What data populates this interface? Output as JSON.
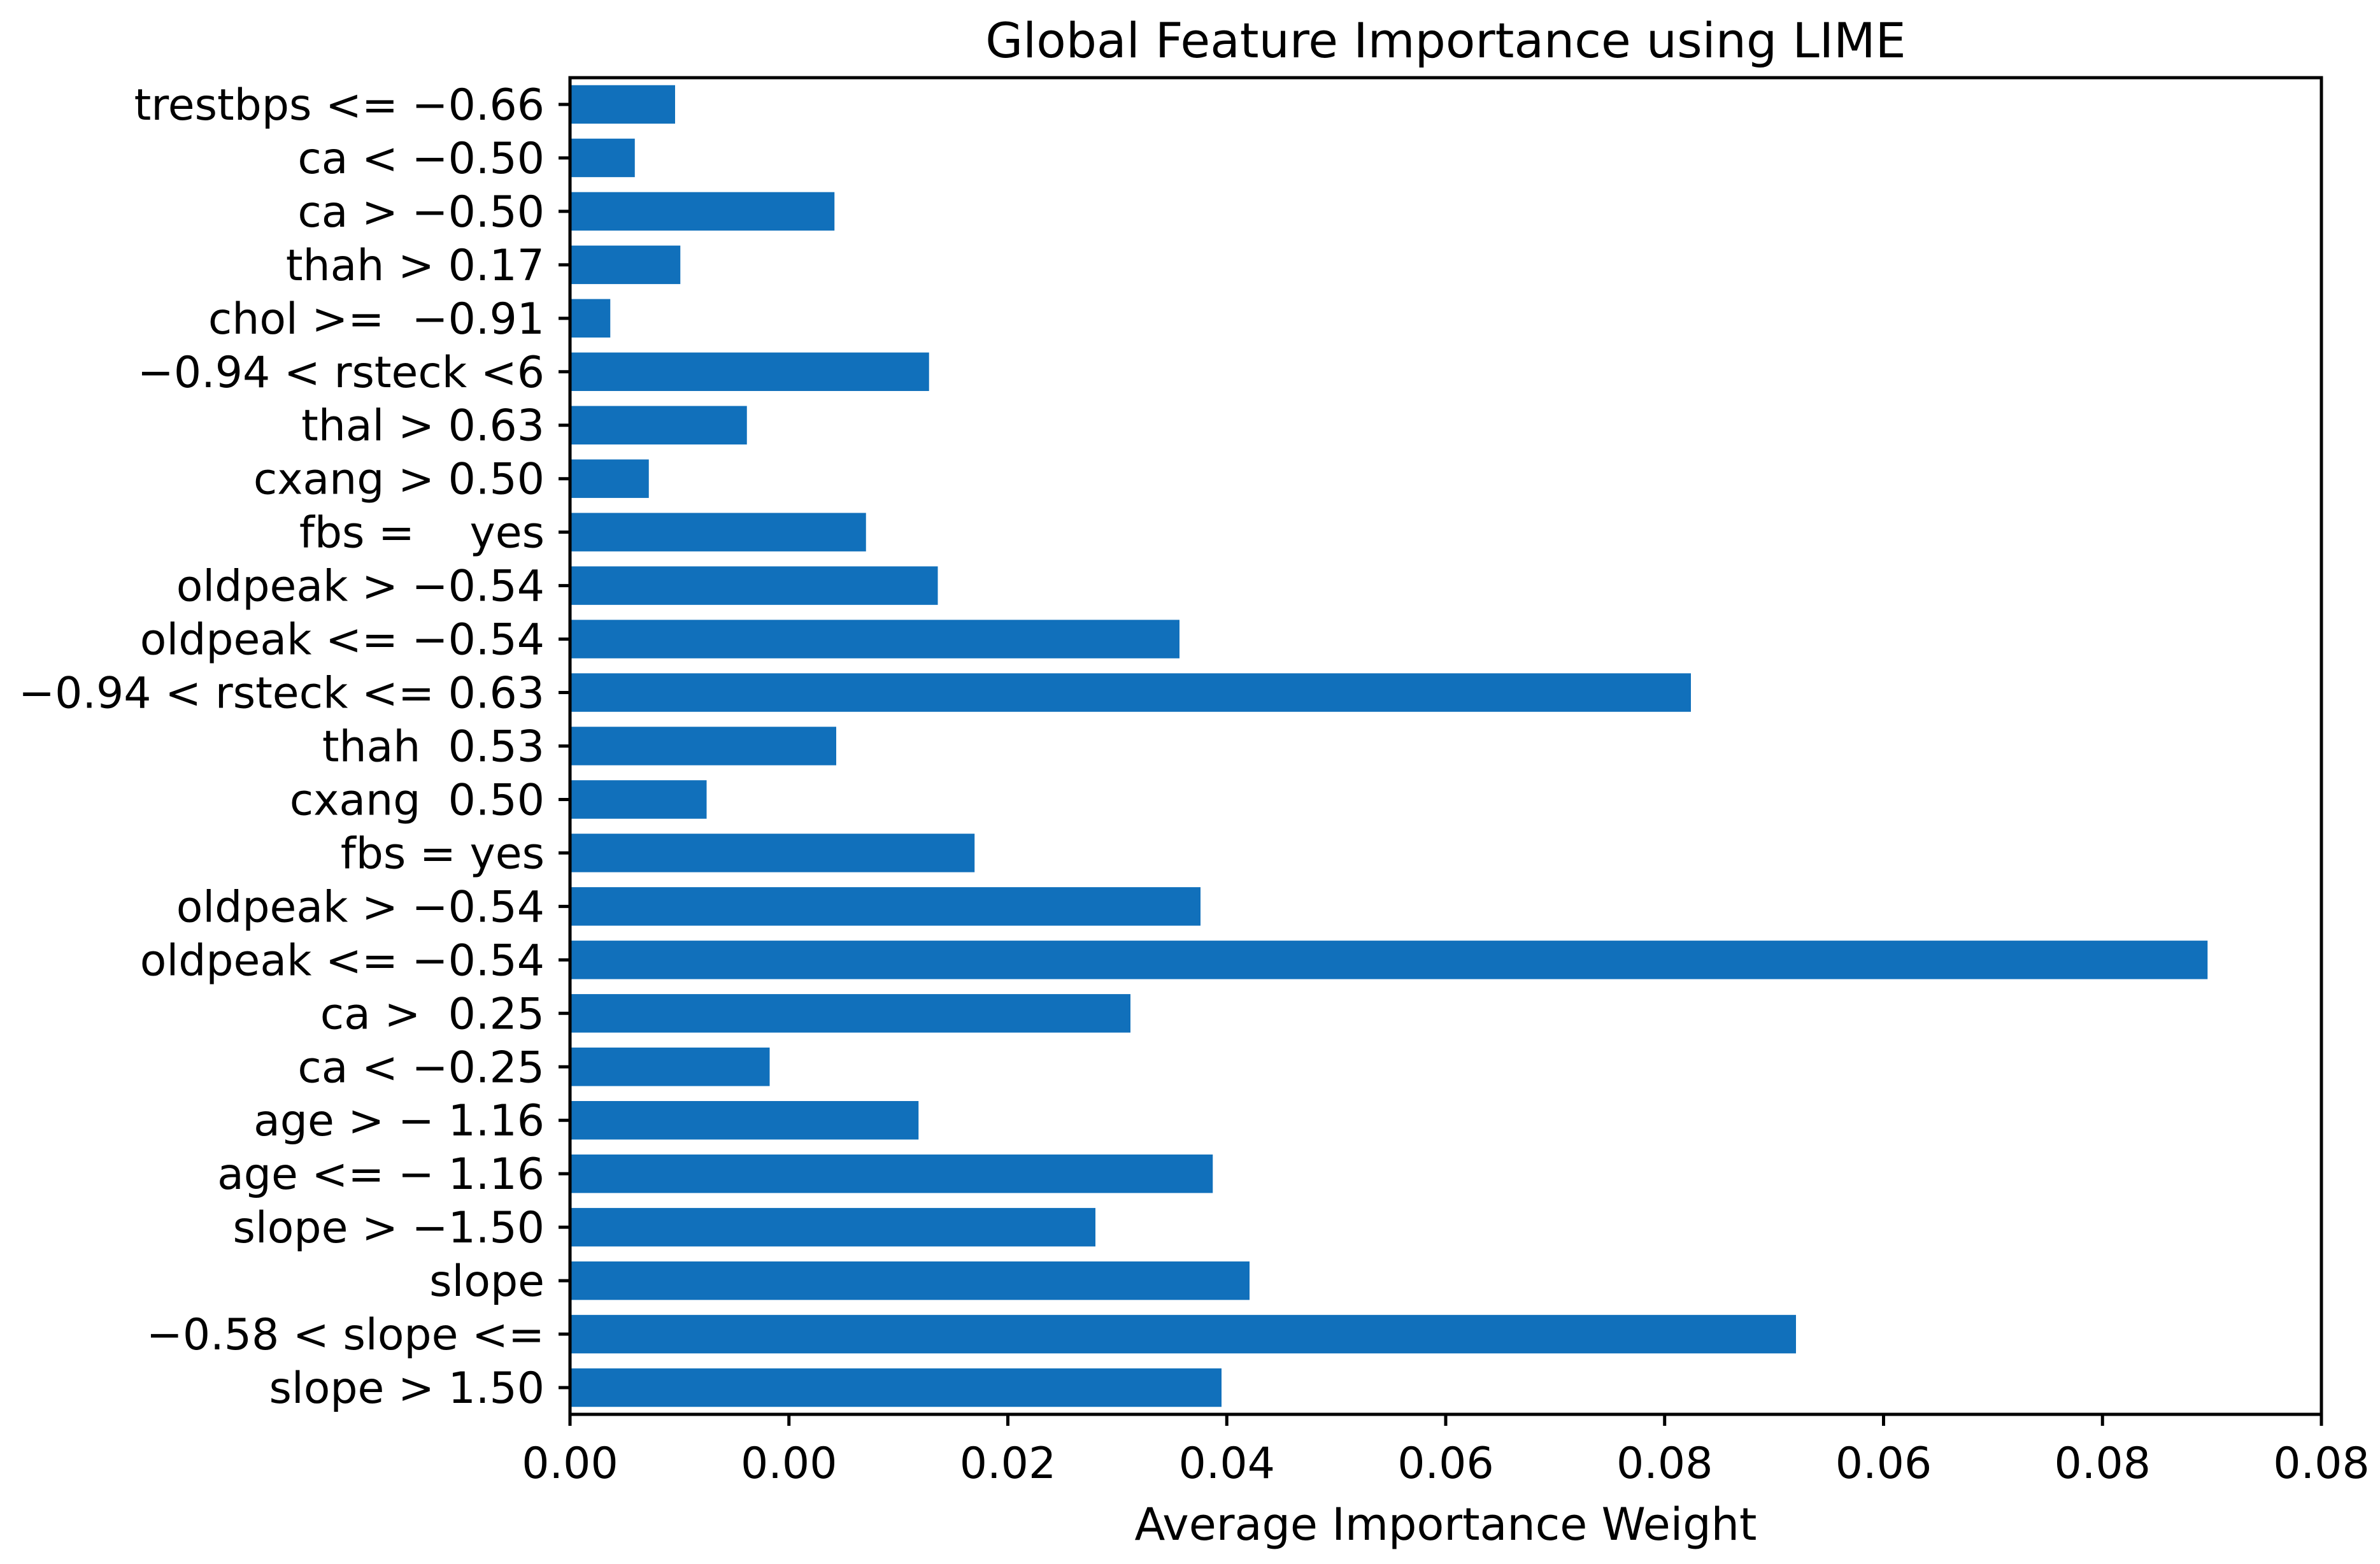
{
  "chart_data": {
    "type": "bar",
    "orientation": "horizontal",
    "title": "Global Feature Importance using LIME",
    "xlabel": "Average Importance Weight",
    "ylabel": "",
    "xlim": [
      0,
      0.1
    ],
    "xtick_labels": [
      "0.00",
      "0.00",
      "0.02",
      "0.04",
      "0.06",
      "0.08",
      "0.06",
      "0.08",
      "0.08"
    ],
    "grid": false,
    "legend": "none",
    "bar_color": "#1170bb",
    "categories": [
      "trestbps <= −0.66",
      "ca < −0.50",
      "ca > −0.50",
      "thah > 0.17",
      "chol >=  −0.91",
      "−0.94 < rsteck <6",
      "thal > 0.63",
      "cxang > 0.50",
      "fbs =    yes",
      "oldpeak > −0.54",
      "oldpeak <= −0.54",
      "−0.94 < rsteck <= 0.63",
      "thah  0.53",
      "cxang  0.50",
      "fbs = yes",
      "oldpeak > −0.54",
      "oldpeak <= −0.54",
      "ca >  0.25",
      "ca < −0.25",
      "age > − 1.16",
      "age <= − 1.16",
      "slope > −1.50",
      "slope",
      "−0.58 < slope <=",
      "slope > 1.50"
    ],
    "values": [
      0.006,
      0.0037,
      0.0151,
      0.0063,
      0.0023,
      0.0205,
      0.0101,
      0.0045,
      0.0169,
      0.021,
      0.0348,
      0.064,
      0.0152,
      0.0078,
      0.0231,
      0.036,
      0.0935,
      0.032,
      0.0114,
      0.0199,
      0.0367,
      0.03,
      0.0388,
      0.07,
      0.0372
    ]
  }
}
